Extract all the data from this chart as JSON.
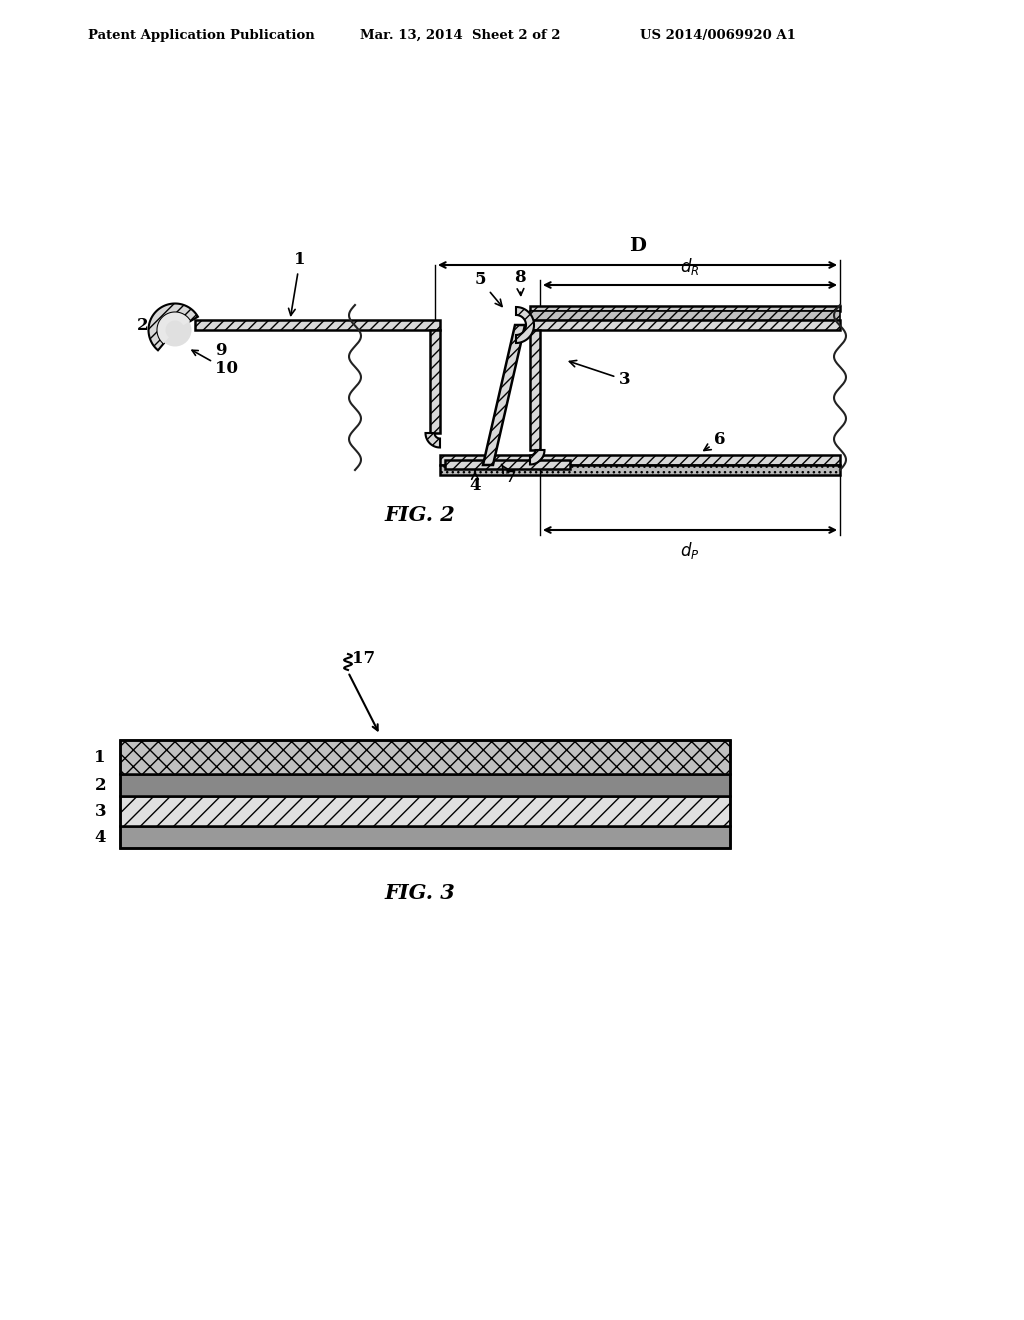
{
  "bg_color": "#ffffff",
  "line_color": "#000000",
  "header_text1": "Patent Application Publication",
  "header_text2": "Mar. 13, 2014  Sheet 2 of 2",
  "header_text3": "US 2014/0069920 A1",
  "fig2_caption": "FIG. 2",
  "fig3_caption": "FIG. 3",
  "metal_fc": "#d8d8d8",
  "metal_ec": "#000000",
  "hatch_dense": "///",
  "hatch_cross": "xxx",
  "hatch_diag": "//",
  "layer1_fc": "#c0c0c0",
  "layer2_fc": "#888888",
  "layer3_fc": "#d8d8d8",
  "layer4_fc": "#999999"
}
